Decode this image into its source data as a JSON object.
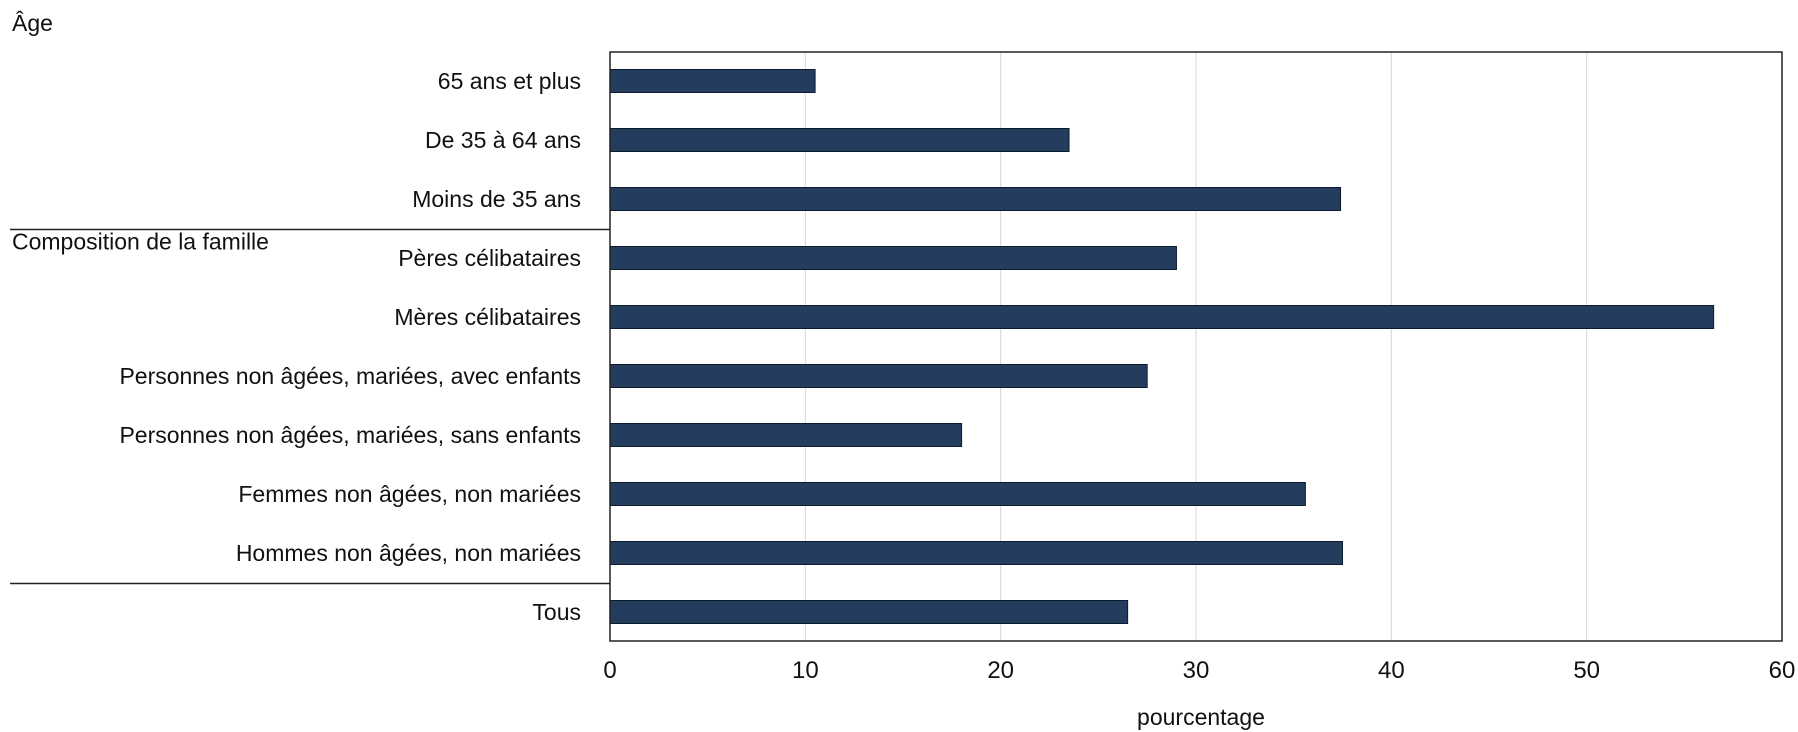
{
  "chart_data": {
    "type": "bar",
    "orientation": "horizontal",
    "title": "",
    "xlabel": "pourcentage",
    "ylabel": "",
    "xlim": [
      0,
      60
    ],
    "x_ticks": [
      0,
      10,
      20,
      30,
      40,
      50,
      60
    ],
    "grid": "vertical",
    "colors": {
      "bar": "#243d5e",
      "bar_edge": "#0d1b2e",
      "grid": "#d4d4d4",
      "axis": "#222222"
    },
    "groups": [
      {
        "name": "Âge",
        "categories": [
          "65 ans et plus",
          "De 35 à 64 ans",
          "Moins de 35 ans"
        ],
        "values": [
          10.5,
          23.5,
          37.4
        ]
      },
      {
        "name": "Composition de la famille",
        "categories": [
          "Pères célibataires",
          "Mères célibataires",
          "Personnes non âgées, mariées, avec enfants",
          "Personnes non âgées, mariées, sans enfants",
          "Femmes non âgées, non mariées",
          "Hommes non âgées, non mariées"
        ],
        "values": [
          29.0,
          56.5,
          27.5,
          18.0,
          35.6,
          37.5
        ]
      },
      {
        "name": "",
        "categories": [
          "Tous"
        ],
        "values": [
          26.5
        ]
      }
    ]
  }
}
